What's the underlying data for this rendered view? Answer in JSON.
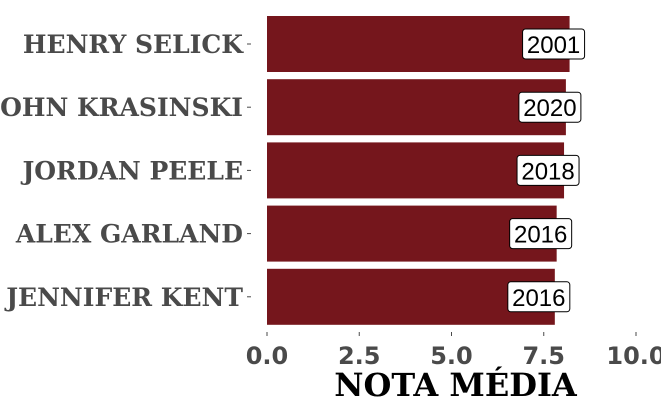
{
  "chart_data": {
    "type": "bar",
    "orientation": "horizontal",
    "categories": [
      "HENRY SELICK",
      "JOHN KRASINSKI",
      "JORDAN PEELE",
      "ALEX GARLAND",
      "JENNIFER KENT"
    ],
    "values": [
      8.2,
      8.1,
      8.05,
      7.85,
      7.8
    ],
    "data_labels": [
      "2001",
      "2020",
      "2018",
      "2016",
      "2016"
    ],
    "xlabel": "NOTA MÉDIA",
    "ylabel": "",
    "xlim": [
      0,
      10
    ],
    "x_ticks": [
      "0.0",
      "2.5",
      "5.0",
      "7.5",
      "10.0"
    ],
    "x_tick_values": [
      0,
      2.5,
      5,
      7.5,
      10
    ],
    "grid": false,
    "colors": {
      "bar": "#75161c",
      "label_box": "#ffffff",
      "label_border": "#000000",
      "text": "#4a4a4a"
    }
  }
}
